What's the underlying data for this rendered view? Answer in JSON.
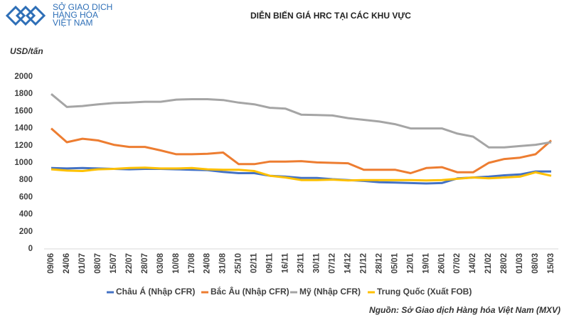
{
  "logo": [
    "SỞ GIAO DỊCH",
    "HÀNG HÓA",
    "VIỆT NAM"
  ],
  "chart_data": {
    "type": "line",
    "title": "DIỄN BIẾN GIÁ HRC TẠI CÁC KHU VỰC",
    "y_label": "USD/tấn",
    "source": "Nguồn: Sở Giao dịch Hàng hóa Việt Nam (MXV)",
    "categories": [
      "09/06",
      "24/06",
      "01/07",
      "08/07",
      "15/07",
      "22/07",
      "28/07",
      "03/08",
      "10/08",
      "17/08",
      "24/08",
      "31/08",
      "25/10",
      "02/11",
      "09/11",
      "16/11",
      "23/11",
      "30/11",
      "07/12",
      "14/12",
      "21/12",
      "28/12",
      "05/01",
      "12/01",
      "19/01",
      "26/01",
      "07/02",
      "14/02",
      "21/02",
      "28/02",
      "01/03",
      "08/03",
      "15/03"
    ],
    "ylim": [
      0,
      2000
    ],
    "yticks": [
      0,
      200,
      400,
      600,
      800,
      1000,
      1200,
      1400,
      1600,
      1800,
      2000
    ],
    "grid": false,
    "legend": "bottom",
    "series": [
      {
        "name": "Châu Á (Nhập CFR)",
        "color": "#4472c4",
        "values": [
          940,
          935,
          940,
          935,
          930,
          925,
          930,
          930,
          925,
          920,
          915,
          895,
          880,
          880,
          850,
          840,
          825,
          825,
          810,
          800,
          790,
          775,
          770,
          765,
          760,
          765,
          820,
          830,
          840,
          855,
          865,
          900,
          900
        ]
      },
      {
        "name": "Bắc Âu (Nhập CFR)",
        "color": "#ed7d31",
        "values": [
          1400,
          1240,
          1280,
          1260,
          1210,
          1185,
          1185,
          1145,
          1100,
          1100,
          1105,
          1120,
          985,
          985,
          1015,
          1015,
          1020,
          1005,
          1000,
          995,
          920,
          920,
          920,
          880,
          940,
          950,
          890,
          890,
          1000,
          1045,
          1060,
          1100,
          1260
        ]
      },
      {
        "name": "Mỹ (Nhập CFR)",
        "color": "#a5a5a5",
        "values": [
          1800,
          1650,
          1660,
          1680,
          1695,
          1700,
          1710,
          1710,
          1735,
          1740,
          1740,
          1730,
          1700,
          1680,
          1640,
          1630,
          1560,
          1555,
          1550,
          1520,
          1500,
          1480,
          1450,
          1400,
          1400,
          1400,
          1340,
          1305,
          1180,
          1180,
          1195,
          1210,
          1240
        ]
      },
      {
        "name": "Trung Quốc (Xuất FOB)",
        "color": "#ffc000",
        "values": [
          925,
          910,
          905,
          925,
          930,
          940,
          945,
          935,
          935,
          940,
          925,
          920,
          920,
          905,
          850,
          830,
          800,
          800,
          805,
          795,
          800,
          800,
          800,
          800,
          795,
          800,
          815,
          830,
          820,
          830,
          840,
          890,
          850
        ]
      }
    ]
  }
}
